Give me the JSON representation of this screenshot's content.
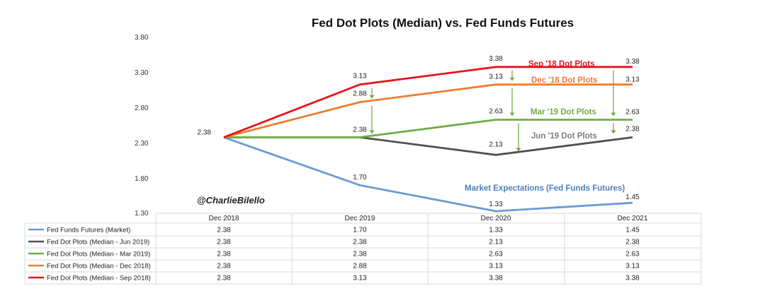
{
  "chart_data": {
    "type": "line",
    "title": "Fed Dot Plots (Median) vs. Fed Funds Futures",
    "categories": [
      "Dec 2018",
      "Dec 2019",
      "Dec 2020",
      "Dec 2021"
    ],
    "y_ticks": [
      "3.80",
      "3.30",
      "2.80",
      "2.30",
      "1.80",
      "1.30"
    ],
    "ylim": [
      1.3,
      3.8
    ],
    "series": [
      {
        "key": "futures",
        "name": "Fed Funds Futures (Market)",
        "color": "#6b9bd1",
        "values": [
          2.38,
          1.7,
          1.33,
          1.45
        ],
        "labels": [
          "2.38",
          "1.70",
          "1.33",
          "1.45"
        ]
      },
      {
        "key": "jun19",
        "name": "Fed Dot Plots (Median - Jun 2019)",
        "color": "#505050",
        "values": [
          2.38,
          2.38,
          2.13,
          2.38
        ],
        "labels": [
          "2.38",
          "2.38",
          "2.13",
          "2.38"
        ]
      },
      {
        "key": "mar19",
        "name": "Fed Dot Plots (Median - Mar 2019)",
        "color": "#70ad47",
        "values": [
          2.38,
          2.38,
          2.63,
          2.63
        ],
        "labels": [
          "2.38",
          "2.38",
          "2.63",
          "2.63"
        ]
      },
      {
        "key": "dec18",
        "name": "Fed Dot Plots (Median - Dec 2018)",
        "color": "#ed7d31",
        "values": [
          2.38,
          2.88,
          3.13,
          3.13
        ],
        "labels": [
          "2.38",
          "2.88",
          "3.13",
          "3.13"
        ]
      },
      {
        "key": "sep18",
        "name": "Fed Dot Plots (Median - Sep 2018)",
        "color": "#e8141c",
        "values": [
          2.38,
          3.13,
          3.38,
          3.38
        ],
        "labels": [
          "2.38",
          "3.13",
          "3.38",
          "3.38"
        ]
      }
    ],
    "annotations": {
      "sep18": "Sep '18 Dot Plots",
      "dec18": "Dec '18 Dot Plots",
      "mar19": "Mar '19 Dot Plots",
      "jun19": "Jun '19 Dot Plots",
      "futures": "Market Expectations (Fed Funds Futures)"
    },
    "handle": "@CharlieBilello",
    "arrow_color": "#70ad47"
  }
}
